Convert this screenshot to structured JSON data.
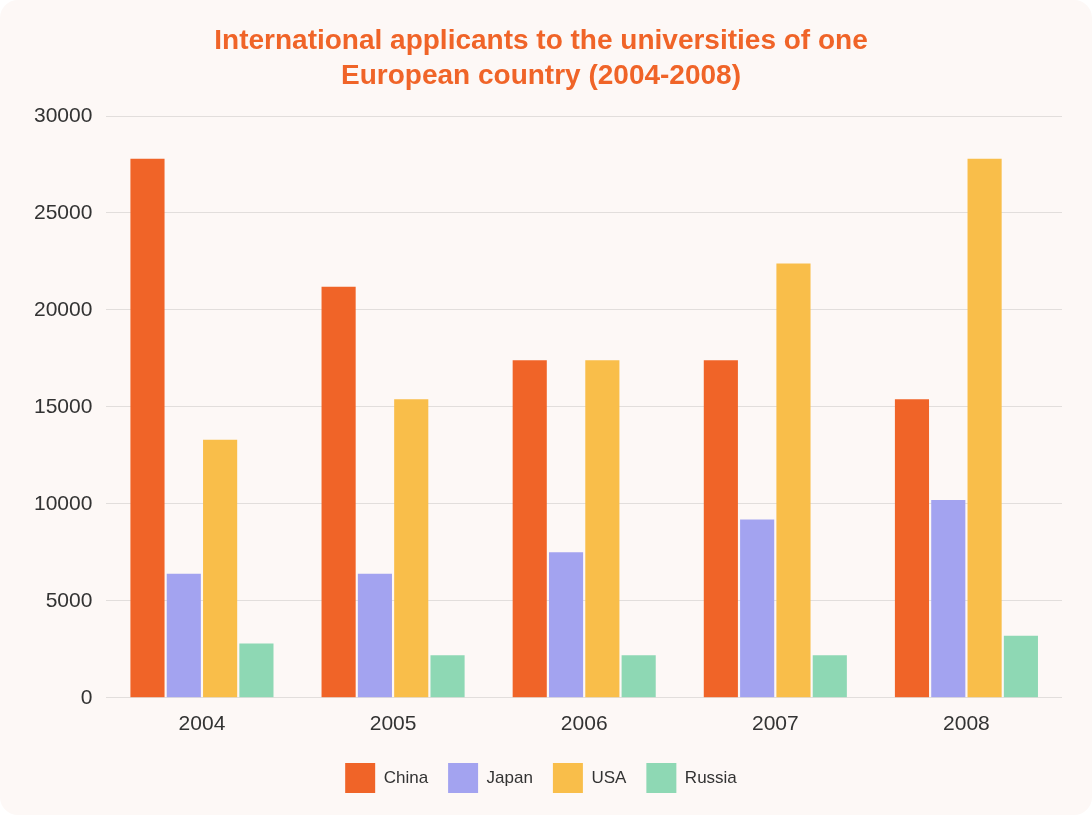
{
  "chart_data": {
    "type": "bar",
    "title": "International applicants to the universities of one European country (2004-2008)",
    "categories": [
      "2004",
      "2005",
      "2006",
      "2007",
      "2008"
    ],
    "series": [
      {
        "name": "China",
        "color": "#f06428",
        "values": [
          27800,
          21200,
          17400,
          17400,
          15400
        ]
      },
      {
        "name": "Japan",
        "color": "#a3a3f0",
        "values": [
          6400,
          6400,
          7500,
          9200,
          10200
        ]
      },
      {
        "name": "USA",
        "color": "#f9be4a",
        "values": [
          13300,
          15400,
          17400,
          22400,
          27800
        ]
      },
      {
        "name": "Russia",
        "color": "#8ed8b4",
        "values": [
          2800,
          2200,
          2200,
          2200,
          3200
        ]
      }
    ],
    "ylim": [
      0,
      30000
    ],
    "yticks": [
      0,
      5000,
      10000,
      15000,
      20000,
      25000,
      30000
    ],
    "grid": true,
    "legend": "bottom"
  }
}
